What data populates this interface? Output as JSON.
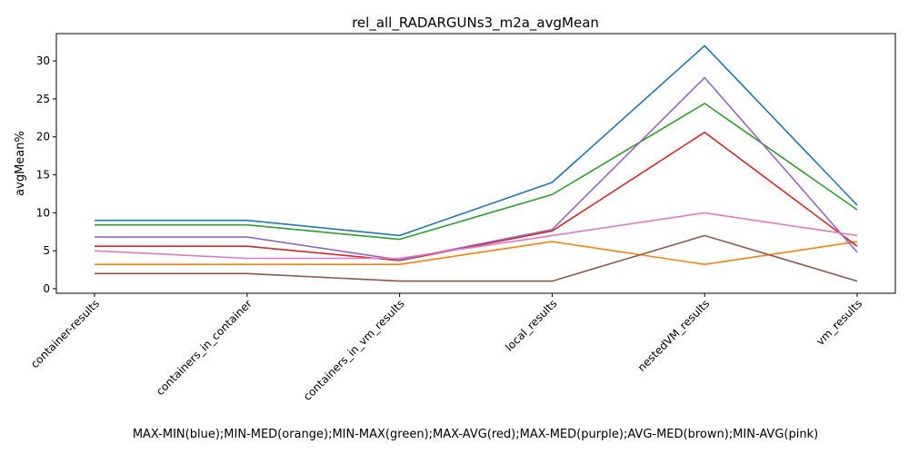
{
  "chart_data": {
    "type": "line",
    "title": "rel_all_RADARGUNs3_m2a_avgMean",
    "xlabel": "MAX-MIN(blue);MIN-MED(orange);MIN-MAX(green);MAX-AVG(red);MAX-MED(purple);AVG-MED(brown);MIN-AVG(pink)",
    "ylabel": "avgMean%",
    "categories": [
      "container-results",
      "containers_in_container",
      "containers_in_vm_results",
      "local_results",
      "nestedVM_results",
      "vm_results"
    ],
    "ylim": [
      -0.6,
      33.6
    ],
    "yticks": [
      0,
      5,
      10,
      15,
      20,
      25,
      30
    ],
    "grid": false,
    "series": [
      {
        "color": "#1f77b4",
        "values": [
          9.0,
          9.0,
          7.0,
          14.0,
          32.0,
          11.0
        ]
      },
      {
        "color": "#ff7f0e",
        "values": [
          3.2,
          3.2,
          3.2,
          6.2,
          3.2,
          6.2
        ]
      },
      {
        "color": "#2ca02c",
        "values": [
          8.4,
          8.4,
          6.5,
          12.4,
          24.4,
          10.4
        ]
      },
      {
        "color": "#d62728",
        "values": [
          5.6,
          5.6,
          3.7,
          7.6,
          20.6,
          5.6
        ]
      },
      {
        "color": "#9467bd",
        "values": [
          6.8,
          6.8,
          3.8,
          7.8,
          27.8,
          4.8
        ]
      },
      {
        "color": "#8c564b",
        "values": [
          2.0,
          2.0,
          1.0,
          1.0,
          7.0,
          1.0
        ]
      },
      {
        "color": "#e377c2",
        "values": [
          5.0,
          4.0,
          4.0,
          7.0,
          10.0,
          7.0
        ]
      }
    ]
  }
}
